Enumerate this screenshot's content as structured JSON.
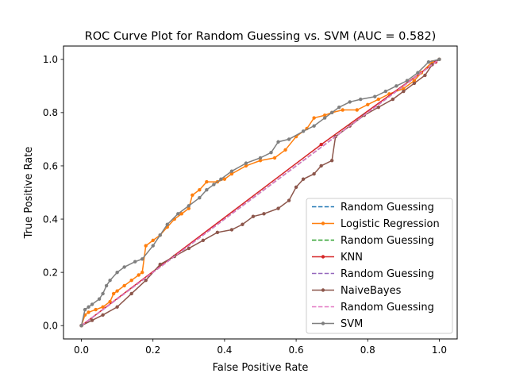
{
  "chart_data": {
    "type": "line",
    "title": "ROC Curve Plot for Random Guessing vs. SVM (AUC = 0.582)",
    "xlabel": "False Positive Rate",
    "ylabel": "True Positive Rate",
    "xlim": [
      -0.05,
      1.05
    ],
    "ylim": [
      -0.05,
      1.05
    ],
    "xticks": [
      "0.0",
      "0.2",
      "0.4",
      "0.6",
      "0.8",
      "1.0"
    ],
    "yticks": [
      "0.0",
      "0.2",
      "0.4",
      "0.6",
      "0.8",
      "1.0"
    ],
    "grid": false,
    "legend_position": "lower-right",
    "series": [
      {
        "name": "Random Guessing",
        "color": "#1f77b4",
        "style": "dashed",
        "marker": "none",
        "points": [
          [
            0,
            0
          ],
          [
            1,
            1
          ]
        ]
      },
      {
        "name": "Logistic Regression",
        "color": "#ff7f0e",
        "style": "solid",
        "marker": "dot",
        "points": [
          [
            0,
            0
          ],
          [
            0.01,
            0.04
          ],
          [
            0.02,
            0.05
          ],
          [
            0.04,
            0.06
          ],
          [
            0.06,
            0.07
          ],
          [
            0.08,
            0.09
          ],
          [
            0.09,
            0.12
          ],
          [
            0.1,
            0.13
          ],
          [
            0.12,
            0.15
          ],
          [
            0.14,
            0.17
          ],
          [
            0.16,
            0.19
          ],
          [
            0.17,
            0.2
          ],
          [
            0.18,
            0.3
          ],
          [
            0.2,
            0.32
          ],
          [
            0.22,
            0.34
          ],
          [
            0.24,
            0.37
          ],
          [
            0.26,
            0.4
          ],
          [
            0.28,
            0.42
          ],
          [
            0.3,
            0.44
          ],
          [
            0.31,
            0.49
          ],
          [
            0.33,
            0.51
          ],
          [
            0.35,
            0.54
          ],
          [
            0.38,
            0.54
          ],
          [
            0.4,
            0.55
          ],
          [
            0.42,
            0.57
          ],
          [
            0.46,
            0.6
          ],
          [
            0.5,
            0.62
          ],
          [
            0.54,
            0.63
          ],
          [
            0.57,
            0.66
          ],
          [
            0.6,
            0.71
          ],
          [
            0.63,
            0.74
          ],
          [
            0.65,
            0.78
          ],
          [
            0.68,
            0.79
          ],
          [
            0.7,
            0.8
          ],
          [
            0.73,
            0.81
          ],
          [
            0.77,
            0.81
          ],
          [
            0.8,
            0.83
          ],
          [
            0.83,
            0.85
          ],
          [
            0.86,
            0.87
          ],
          [
            0.9,
            0.89
          ],
          [
            0.93,
            0.92
          ],
          [
            0.95,
            0.95
          ],
          [
            0.98,
            0.99
          ],
          [
            1,
            1
          ]
        ]
      },
      {
        "name": "Random Guessing",
        "color": "#2ca02c",
        "style": "dashed",
        "marker": "none",
        "points": [
          [
            0,
            0
          ],
          [
            1,
            1
          ]
        ]
      },
      {
        "name": "KNN",
        "color": "#d62728",
        "style": "solid",
        "marker": "dot",
        "points": [
          [
            0,
            0
          ],
          [
            0.67,
            0.68
          ],
          [
            0.99,
            0.99
          ]
        ]
      },
      {
        "name": "Random Guessing",
        "color": "#9467bd",
        "style": "dashed",
        "marker": "none",
        "points": [
          [
            0,
            0
          ],
          [
            1,
            1
          ]
        ]
      },
      {
        "name": "NaiveBayes",
        "color": "#8c564b",
        "style": "solid",
        "marker": "dot",
        "points": [
          [
            0,
            0
          ],
          [
            0.03,
            0.02
          ],
          [
            0.06,
            0.04
          ],
          [
            0.1,
            0.07
          ],
          [
            0.14,
            0.12
          ],
          [
            0.18,
            0.17
          ],
          [
            0.22,
            0.23
          ],
          [
            0.26,
            0.26
          ],
          [
            0.3,
            0.29
          ],
          [
            0.34,
            0.32
          ],
          [
            0.38,
            0.35
          ],
          [
            0.42,
            0.36
          ],
          [
            0.45,
            0.38
          ],
          [
            0.48,
            0.41
          ],
          [
            0.51,
            0.42
          ],
          [
            0.55,
            0.44
          ],
          [
            0.58,
            0.47
          ],
          [
            0.6,
            0.52
          ],
          [
            0.62,
            0.55
          ],
          [
            0.65,
            0.57
          ],
          [
            0.67,
            0.6
          ],
          [
            0.7,
            0.62
          ],
          [
            0.71,
            0.71
          ],
          [
            0.75,
            0.75
          ],
          [
            0.79,
            0.79
          ],
          [
            0.83,
            0.82
          ],
          [
            0.87,
            0.85
          ],
          [
            0.9,
            0.88
          ],
          [
            0.93,
            0.91
          ],
          [
            0.96,
            0.94
          ],
          [
            0.98,
            0.98
          ],
          [
            1,
            1
          ]
        ]
      },
      {
        "name": "Random Guessing",
        "color": "#e377c2",
        "style": "dashed",
        "marker": "none",
        "points": [
          [
            0,
            0
          ],
          [
            1,
            1
          ]
        ]
      },
      {
        "name": "SVM",
        "color": "#7f7f7f",
        "style": "solid",
        "marker": "dot",
        "points": [
          [
            0,
            0
          ],
          [
            0.01,
            0.06
          ],
          [
            0.02,
            0.07
          ],
          [
            0.03,
            0.08
          ],
          [
            0.05,
            0.1
          ],
          [
            0.06,
            0.12
          ],
          [
            0.07,
            0.15
          ],
          [
            0.08,
            0.17
          ],
          [
            0.1,
            0.2
          ],
          [
            0.12,
            0.22
          ],
          [
            0.15,
            0.24
          ],
          [
            0.17,
            0.25
          ],
          [
            0.2,
            0.3
          ],
          [
            0.22,
            0.34
          ],
          [
            0.24,
            0.38
          ],
          [
            0.27,
            0.42
          ],
          [
            0.3,
            0.45
          ],
          [
            0.33,
            0.48
          ],
          [
            0.35,
            0.51
          ],
          [
            0.37,
            0.53
          ],
          [
            0.39,
            0.55
          ],
          [
            0.42,
            0.58
          ],
          [
            0.46,
            0.61
          ],
          [
            0.5,
            0.63
          ],
          [
            0.53,
            0.65
          ],
          [
            0.55,
            0.69
          ],
          [
            0.58,
            0.7
          ],
          [
            0.62,
            0.73
          ],
          [
            0.65,
            0.75
          ],
          [
            0.68,
            0.78
          ],
          [
            0.7,
            0.8
          ],
          [
            0.72,
            0.82
          ],
          [
            0.75,
            0.84
          ],
          [
            0.78,
            0.85
          ],
          [
            0.82,
            0.86
          ],
          [
            0.85,
            0.88
          ],
          [
            0.88,
            0.9
          ],
          [
            0.91,
            0.92
          ],
          [
            0.94,
            0.95
          ],
          [
            0.97,
            0.99
          ],
          [
            1,
            1
          ]
        ]
      }
    ]
  }
}
